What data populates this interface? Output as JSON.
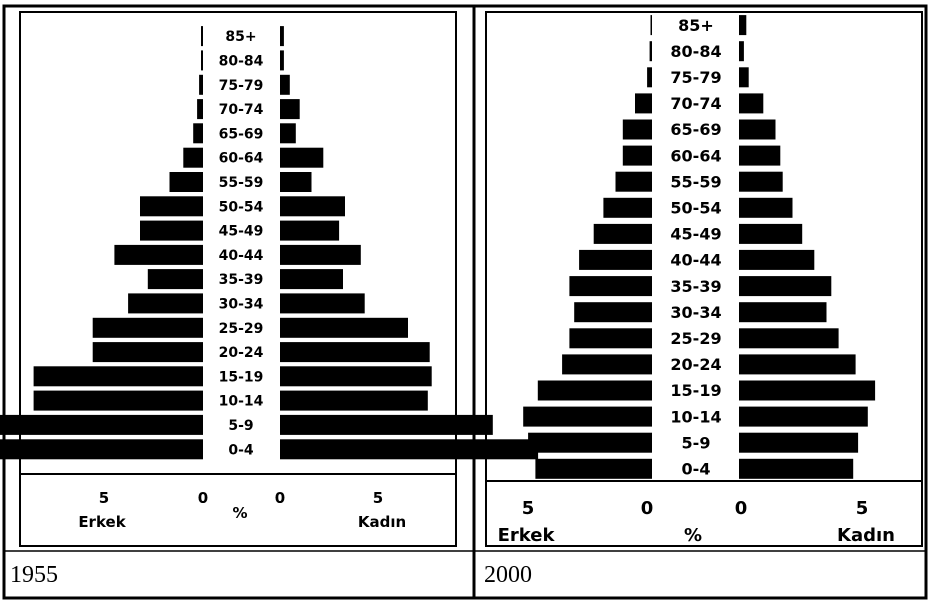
{
  "chart_data": [
    {
      "type": "bar",
      "orientation": "population-pyramid",
      "caption": "1955",
      "categories": [
        "85+",
        "80-84",
        "75-79",
        "70-74",
        "65-69",
        "60-64",
        "55-59",
        "50-54",
        "45-49",
        "40-44",
        "35-39",
        "30-34",
        "25-29",
        "20-24",
        "15-19",
        "10-14",
        "5-9",
        "0-4"
      ],
      "series": [
        {
          "name": "Erkek",
          "side": "left",
          "values": [
            0.1,
            0.1,
            0.2,
            0.3,
            0.5,
            1.0,
            1.7,
            3.2,
            3.2,
            4.5,
            2.8,
            3.8,
            5.6,
            5.6,
            8.6,
            8.6,
            11.0,
            12.9
          ]
        },
        {
          "name": "Kadın",
          "side": "right",
          "values": [
            0.2,
            0.2,
            0.5,
            1.0,
            0.8,
            2.2,
            1.6,
            3.3,
            3.0,
            4.1,
            3.2,
            4.3,
            6.5,
            7.6,
            7.7,
            7.5,
            10.8,
            13.1
          ]
        }
      ],
      "xticks": [
        "5",
        "0",
        "0",
        "5"
      ],
      "xlabel_left": "Erkek",
      "xlabel_center": "%",
      "xlabel_right": "Kadın",
      "grid": false
    },
    {
      "type": "bar",
      "orientation": "population-pyramid",
      "caption": "2000",
      "categories": [
        "85+",
        "80-84",
        "75-79",
        "70-74",
        "65-69",
        "60-64",
        "55-59",
        "50-54",
        "45-49",
        "40-44",
        "35-39",
        "30-34",
        "25-29",
        "20-24",
        "15-19",
        "10-14",
        "5-9",
        "0-4"
      ],
      "series": [
        {
          "name": "Erkek",
          "side": "left",
          "values": [
            0.05,
            0.1,
            0.2,
            0.7,
            1.2,
            1.2,
            1.5,
            2.0,
            2.4,
            3.0,
            3.4,
            3.2,
            3.4,
            3.7,
            4.7,
            5.3,
            5.1,
            4.8
          ]
        },
        {
          "name": "Kadın",
          "side": "right",
          "values": [
            0.3,
            0.2,
            0.4,
            1.0,
            1.5,
            1.7,
            1.8,
            2.2,
            2.6,
            3.1,
            3.8,
            3.6,
            4.1,
            4.8,
            5.6,
            5.3,
            4.9,
            4.7
          ]
        }
      ],
      "xticks": [
        "5",
        "0",
        "0",
        "5"
      ],
      "xlabel_left": "Erkek",
      "xlabel_center": "%",
      "xlabel_right": "Kadın",
      "grid": false
    }
  ]
}
